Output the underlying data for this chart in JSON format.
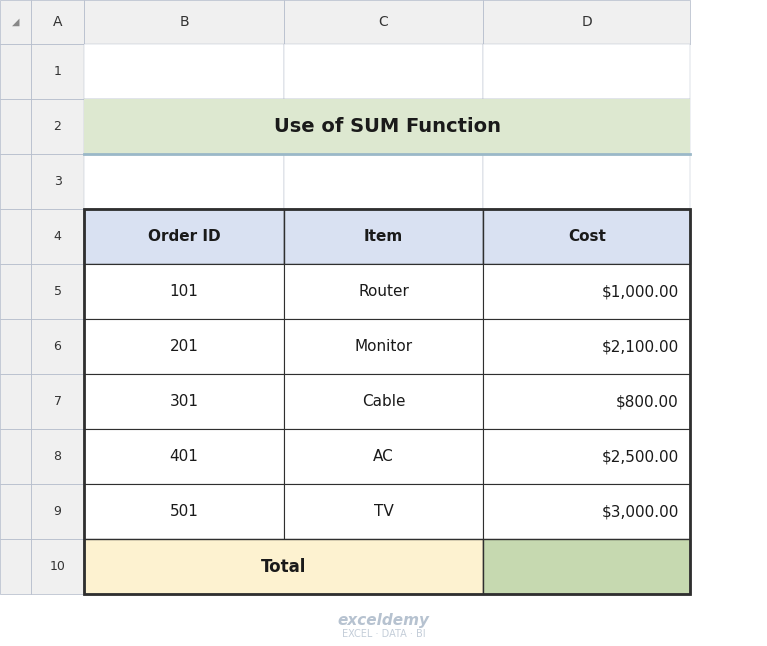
{
  "title": "Use of SUM Function",
  "title_bg": "#dde8d0",
  "title_border": "#9ab8c8",
  "col_headers": [
    "Order ID",
    "Item",
    "Cost"
  ],
  "col_header_bg": "#d9e1f2",
  "rows": [
    [
      "101",
      "Router",
      "$1,000.00"
    ],
    [
      "201",
      "Monitor",
      "$2,100.00"
    ],
    [
      "301",
      "Cable",
      "$800.00"
    ],
    [
      "401",
      "AC",
      "$2,500.00"
    ],
    [
      "501",
      "TV",
      "$3,000.00"
    ]
  ],
  "total_label": "Total",
  "total_label_bg": "#fdf2d0",
  "total_value_bg": "#c6d9b0",
  "fig_bg": "#ffffff",
  "watermark_text": "exceldemy",
  "watermark_sub": "EXCEL · DATA · BI",
  "grid_line_color": "#2f2f2f",
  "thin_line_color": "#b0b8c8",
  "excel_header_bg": "#f0f0f0"
}
